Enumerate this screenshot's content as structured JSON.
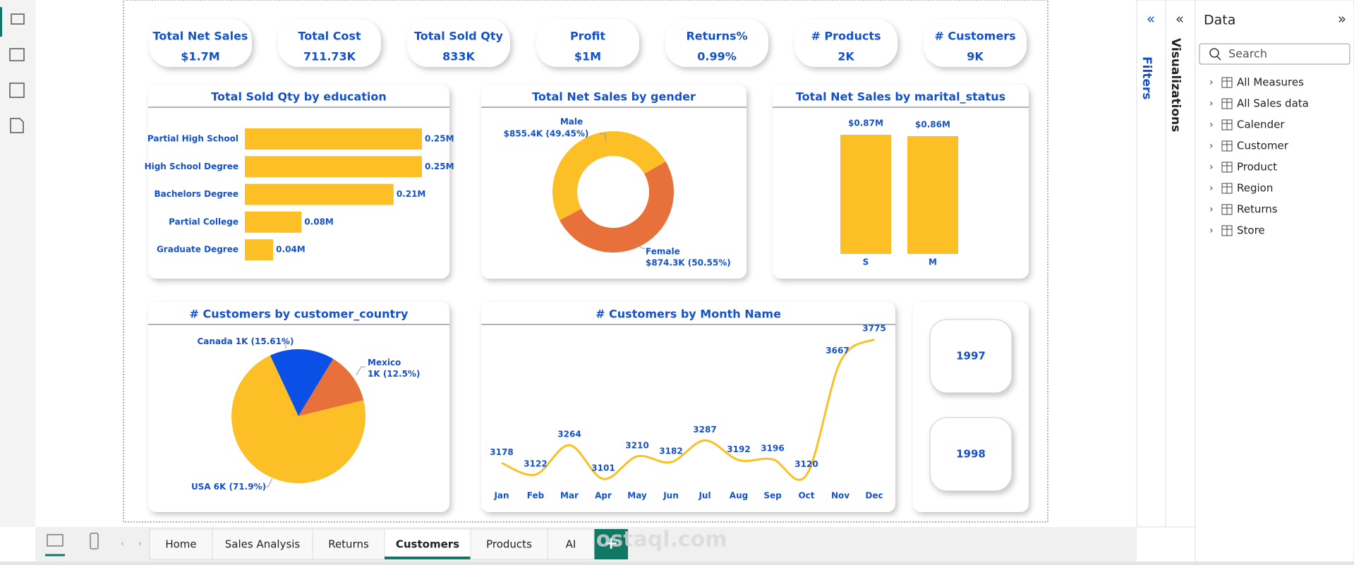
{
  "kpis": [
    {
      "label": "Total Net Sales",
      "value": "$1.7M"
    },
    {
      "label": "Total Cost",
      "value": "711.73K"
    },
    {
      "label": "Total Sold Qty",
      "value": "833K"
    },
    {
      "label": "Profit",
      "value": "$1M"
    },
    {
      "label": "Returns%",
      "value": "0.99%"
    },
    {
      "label": "# Products",
      "value": "2K"
    },
    {
      "label": "# Customers",
      "value": "9K"
    }
  ],
  "chart_data": [
    {
      "type": "bar",
      "orientation": "horizontal",
      "title": "Total Sold Qty by education",
      "categories": [
        "Partial High School",
        "High School Degree",
        "Bachelors Degree",
        "Partial College",
        "Graduate Degree"
      ],
      "values": [
        0.25,
        0.25,
        0.21,
        0.08,
        0.04
      ],
      "value_labels": [
        "0.25M",
        "0.25M",
        "0.21M",
        "0.08M",
        "0.04M"
      ],
      "color": "#fcbf25"
    },
    {
      "type": "donut",
      "title": "Total Net Sales by gender",
      "categories": [
        "Male",
        "Female"
      ],
      "values": [
        855.4,
        874.3
      ],
      "value_labels": [
        "$855.4K (49.45%)",
        "$874.3K (50.55%)"
      ],
      "colors": [
        "#fcbf25",
        "#e8703a"
      ]
    },
    {
      "type": "bar",
      "orientation": "vertical",
      "title": "Total Net Sales by marital_status",
      "categories": [
        "S",
        "M"
      ],
      "values": [
        0.87,
        0.86
      ],
      "value_labels": [
        "$0.87M",
        "$0.86M"
      ],
      "color": "#fcbf25"
    },
    {
      "type": "pie",
      "title": "# Customers by customer_country",
      "categories": [
        "Canada",
        "Mexico",
        "USA"
      ],
      "values": [
        15.61,
        12.5,
        71.9
      ],
      "value_labels": [
        "1K (15.61%)",
        "1K (12.5%)",
        "6K (71.9%)"
      ],
      "colors": [
        "#0b50e6",
        "#e8703a",
        "#fcbf25"
      ]
    },
    {
      "type": "line",
      "title": "# Customers by Month Name",
      "categories": [
        "Jan",
        "Feb",
        "Mar",
        "Apr",
        "May",
        "Jun",
        "Jul",
        "Aug",
        "Sep",
        "Oct",
        "Nov",
        "Dec"
      ],
      "values": [
        3178,
        3122,
        3264,
        3101,
        3210,
        3182,
        3287,
        3192,
        3196,
        3120,
        3667,
        3775
      ],
      "color": "#fcbf25"
    }
  ],
  "slicers": [
    "1997",
    "1998"
  ],
  "tabs": [
    "Home",
    "Sales Analysis",
    "Returns",
    "Customers",
    "Products",
    "AI"
  ],
  "active_tab": 3,
  "panes": {
    "filters": "Filters",
    "visualizations": "Visualizations"
  },
  "data_pane": {
    "title": "Data",
    "search": "Search",
    "items": [
      "All Measures",
      "All Sales data",
      "Calender",
      "Customer",
      "Product",
      "Region",
      "Returns",
      "Store"
    ]
  },
  "watermark": "mostaql.com"
}
